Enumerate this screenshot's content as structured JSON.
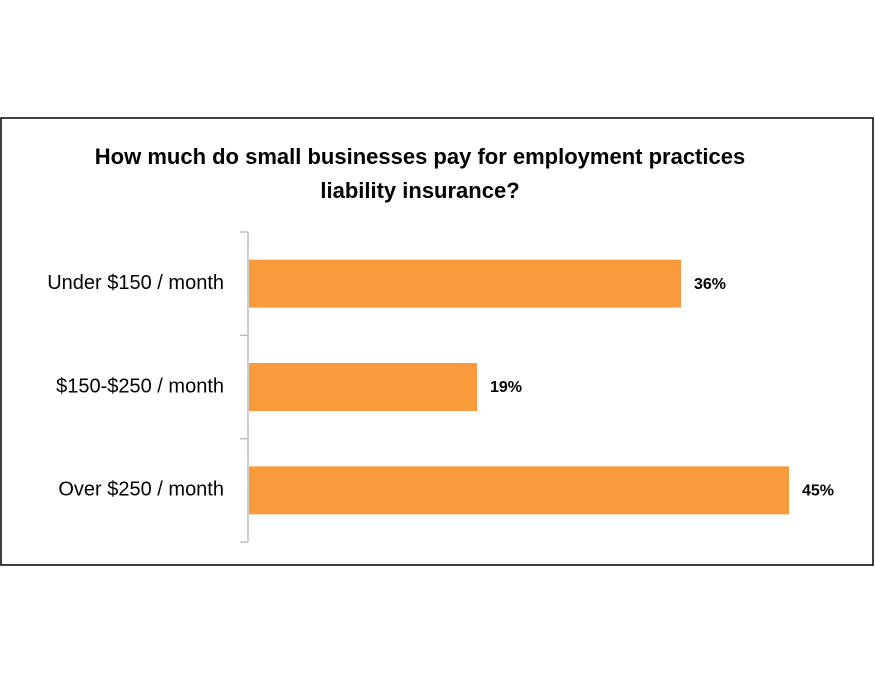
{
  "chart_data": {
    "type": "bar",
    "orientation": "horizontal",
    "title": "How much do small businesses pay for employment practices liability insurance?",
    "categories": [
      "Under $150 / month",
      "$150-$250 / month",
      "Over $250 / month"
    ],
    "values": [
      36,
      19,
      45
    ],
    "value_labels": [
      "36%",
      "19%",
      "45%"
    ],
    "color": "#f99a3c"
  }
}
